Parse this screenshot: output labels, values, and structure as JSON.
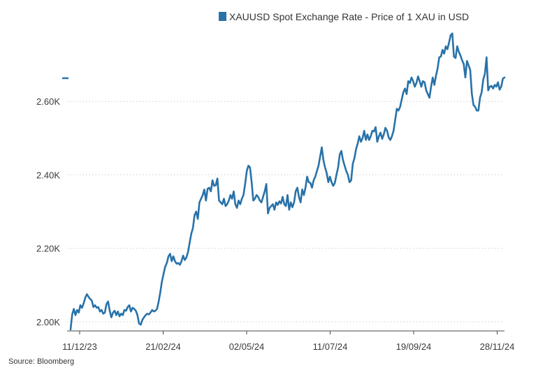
{
  "chart_data": {
    "type": "line",
    "title": "XAUUSD Spot Exchange Rate - Price of 1 XAU in USD",
    "legend": "XAUUSD Spot Exchange Rate - Price of 1 XAU in USD",
    "legend_position": "top-right",
    "xlabel": "",
    "ylabel": "",
    "ylim": [
      1975,
      2800
    ],
    "yticks": [
      2000,
      2200,
      2400,
      2600
    ],
    "ytick_labels": [
      "2.00K",
      "2.20K",
      "2.40K",
      "2.60K"
    ],
    "xticks": [
      "11/12/23",
      "21/02/24",
      "02/05/24",
      "11/07/24",
      "19/09/24",
      "28/11/24"
    ],
    "grid": "horizontal-dotted",
    "source": "Source: Bloomberg",
    "series": [
      {
        "name": "XAUUSD",
        "color": "#2872a8",
        "values": [
          1979,
          2020,
          2035,
          2018,
          2032,
          2025,
          2045,
          2038,
          2050,
          2065,
          2075,
          2068,
          2062,
          2058,
          2040,
          2045,
          2038,
          2040,
          2028,
          2032,
          2022,
          2025,
          2048,
          2055,
          2030,
          2012,
          2025,
          2030,
          2018,
          2028,
          2015,
          2022,
          2018,
          2032,
          2030,
          2040,
          2045,
          2028,
          2038,
          2035,
          2030,
          2018,
          1995,
          1992,
          2005,
          2012,
          2018,
          2022,
          2020,
          2025,
          2032,
          2028,
          2030,
          2035,
          2055,
          2080,
          2110,
          2130,
          2150,
          2160,
          2178,
          2185,
          2165,
          2178,
          2165,
          2158,
          2160,
          2155,
          2165,
          2180,
          2168,
          2175,
          2190,
          2215,
          2240,
          2255,
          2290,
          2300,
          2280,
          2325,
          2335,
          2345,
          2360,
          2330,
          2362,
          2365,
          2355,
          2385,
          2370,
          2372,
          2390,
          2330,
          2325,
          2320,
          2335,
          2315,
          2320,
          2330,
          2345,
          2335,
          2355,
          2320,
          2310,
          2330,
          2320,
          2335,
          2345,
          2375,
          2410,
          2425,
          2420,
          2380,
          2330,
          2335,
          2345,
          2340,
          2330,
          2325,
          2340,
          2355,
          2375,
          2295,
          2310,
          2315,
          2320,
          2305,
          2325,
          2318,
          2328,
          2322,
          2340,
          2320,
          2315,
          2345,
          2305,
          2325,
          2312,
          2325,
          2355,
          2365,
          2340,
          2325,
          2360,
          2345,
          2365,
          2395,
          2380,
          2378,
          2365,
          2385,
          2395,
          2410,
          2425,
          2450,
          2475,
          2440,
          2420,
          2405,
          2380,
          2395,
          2380,
          2370,
          2378,
          2400,
          2420,
          2455,
          2465,
          2440,
          2425,
          2410,
          2400,
          2380,
          2385,
          2430,
          2445,
          2470,
          2485,
          2505,
          2490,
          2500,
          2520,
          2495,
          2510,
          2495,
          2505,
          2520,
          2518,
          2530,
          2490,
          2505,
          2515,
          2498,
          2510,
          2528,
          2520,
          2502,
          2495,
          2505,
          2520,
          2550,
          2580,
          2575,
          2585,
          2605,
          2625,
          2635,
          2620,
          2655,
          2650,
          2665,
          2655,
          2640,
          2650,
          2668,
          2655,
          2640,
          2655,
          2652,
          2630,
          2620,
          2610,
          2640,
          2665,
          2645,
          2670,
          2690,
          2720,
          2722,
          2740,
          2730,
          2750,
          2742,
          2760,
          2780,
          2785,
          2722,
          2718,
          2750,
          2735,
          2725,
          2712,
          2702,
          2665,
          2710,
          2698,
          2685,
          2620,
          2590,
          2585,
          2575,
          2575,
          2610,
          2625,
          2660,
          2675,
          2720,
          2630,
          2640,
          2642,
          2635,
          2645,
          2640,
          2652,
          2632,
          2640,
          2662,
          2665
        ]
      }
    ]
  }
}
